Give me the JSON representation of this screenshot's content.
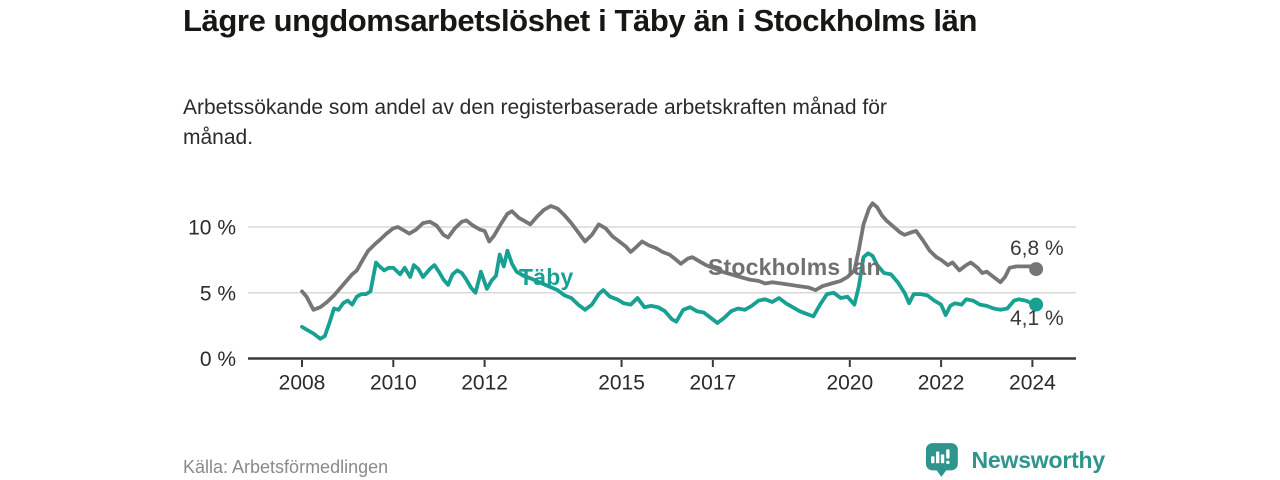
{
  "header": {
    "title": "Lägre ungdomsarbetslöshet i Täby än i Stockholms län",
    "subtitle": "Arbetssökande som andel av den registerbaserade arbetskraften månad för månad."
  },
  "footer": {
    "source": "Källa: Arbetsförmedlingen",
    "brand": "Newsworthy",
    "brand_icon": "newsworthy-chart-bubble-icon"
  },
  "colors": {
    "stockholm_line": "#767676",
    "taby_line": "#18a093",
    "grid_line": "#dadada",
    "axis_line": "#3a3a3a",
    "tick_text": "#2b2b2b",
    "title_text": "#171714",
    "muted_text": "#8a8a8a",
    "brand_teal": "#2e958c"
  },
  "chart_data": {
    "type": "line",
    "title": "Lägre ungdomsarbetslöshet i Täby än i Stockholms län",
    "subtitle": "Arbetssökande som andel av den registerbaserade arbetskraften månad för månad.",
    "source": "Källa: Arbetsförmedlingen",
    "unit": "%",
    "grid": "horizontal",
    "legend_position": "inline-labels",
    "xlim": [
      2006.8,
      2024.95
    ],
    "ylim": [
      0,
      12.5
    ],
    "x_ticks": [
      "2008",
      "2010",
      "2012",
      "2015",
      "2017",
      "2020",
      "2022",
      "2024"
    ],
    "x_tick_years": [
      2008,
      2010,
      2012,
      2015,
      2017,
      2020,
      2022,
      2024
    ],
    "y_ticks": [
      {
        "v": 0,
        "label": "0 %"
      },
      {
        "v": 5,
        "label": "5 %"
      },
      {
        "v": 10,
        "label": "10 %"
      }
    ],
    "series": [
      {
        "name": "Stockholms län",
        "key": "stockholm",
        "color": "#767676",
        "end_value": 6.8,
        "end_label": "6,8 %",
        "points": [
          [
            2008.0,
            5.1
          ],
          [
            2008.1,
            4.7
          ],
          [
            2008.25,
            3.7
          ],
          [
            2008.4,
            3.9
          ],
          [
            2008.55,
            4.3
          ],
          [
            2008.7,
            4.8
          ],
          [
            2008.85,
            5.4
          ],
          [
            2009.0,
            6.0
          ],
          [
            2009.1,
            6.4
          ],
          [
            2009.2,
            6.7
          ],
          [
            2009.33,
            7.5
          ],
          [
            2009.45,
            8.2
          ],
          [
            2009.6,
            8.7
          ],
          [
            2009.7,
            9.0
          ],
          [
            2009.85,
            9.5
          ],
          [
            2010.0,
            9.9
          ],
          [
            2010.1,
            10.0
          ],
          [
            2010.25,
            9.7
          ],
          [
            2010.35,
            9.5
          ],
          [
            2010.5,
            9.8
          ],
          [
            2010.65,
            10.3
          ],
          [
            2010.8,
            10.4
          ],
          [
            2010.95,
            10.1
          ],
          [
            2011.1,
            9.4
          ],
          [
            2011.2,
            9.2
          ],
          [
            2011.35,
            9.9
          ],
          [
            2011.5,
            10.4
          ],
          [
            2011.6,
            10.5
          ],
          [
            2011.75,
            10.1
          ],
          [
            2011.9,
            9.8
          ],
          [
            2012.0,
            9.7
          ],
          [
            2012.1,
            8.9
          ],
          [
            2012.2,
            9.3
          ],
          [
            2012.35,
            10.2
          ],
          [
            2012.5,
            11.0
          ],
          [
            2012.6,
            11.2
          ],
          [
            2012.75,
            10.7
          ],
          [
            2012.9,
            10.4
          ],
          [
            2013.0,
            10.2
          ],
          [
            2013.15,
            10.8
          ],
          [
            2013.3,
            11.3
          ],
          [
            2013.45,
            11.6
          ],
          [
            2013.6,
            11.4
          ],
          [
            2013.75,
            10.9
          ],
          [
            2013.9,
            10.3
          ],
          [
            2014.05,
            9.6
          ],
          [
            2014.2,
            8.9
          ],
          [
            2014.35,
            9.4
          ],
          [
            2014.5,
            10.2
          ],
          [
            2014.65,
            9.9
          ],
          [
            2014.8,
            9.3
          ],
          [
            2014.95,
            8.9
          ],
          [
            2015.1,
            8.5
          ],
          [
            2015.2,
            8.1
          ],
          [
            2015.3,
            8.4
          ],
          [
            2015.45,
            8.9
          ],
          [
            2015.6,
            8.6
          ],
          [
            2015.75,
            8.4
          ],
          [
            2015.9,
            8.1
          ],
          [
            2016.05,
            7.9
          ],
          [
            2016.2,
            7.5
          ],
          [
            2016.3,
            7.2
          ],
          [
            2016.45,
            7.6
          ],
          [
            2016.55,
            7.7
          ],
          [
            2016.7,
            7.4
          ],
          [
            2016.85,
            7.1
          ],
          [
            2017.0,
            6.9
          ],
          [
            2017.2,
            6.6
          ],
          [
            2017.4,
            6.4
          ],
          [
            2017.6,
            6.2
          ],
          [
            2017.8,
            6.0
          ],
          [
            2018.0,
            5.9
          ],
          [
            2018.15,
            5.7
          ],
          [
            2018.3,
            5.8
          ],
          [
            2018.5,
            5.7
          ],
          [
            2018.7,
            5.6
          ],
          [
            2018.9,
            5.5
          ],
          [
            2019.1,
            5.4
          ],
          [
            2019.25,
            5.2
          ],
          [
            2019.4,
            5.5
          ],
          [
            2019.6,
            5.7
          ],
          [
            2019.8,
            5.9
          ],
          [
            2019.95,
            6.2
          ],
          [
            2020.1,
            6.7
          ],
          [
            2020.2,
            8.3
          ],
          [
            2020.3,
            10.2
          ],
          [
            2020.42,
            11.4
          ],
          [
            2020.5,
            11.8
          ],
          [
            2020.6,
            11.5
          ],
          [
            2020.7,
            10.9
          ],
          [
            2020.8,
            10.5
          ],
          [
            2020.9,
            10.2
          ],
          [
            2021.0,
            9.9
          ],
          [
            2021.1,
            9.6
          ],
          [
            2021.2,
            9.4
          ],
          [
            2021.35,
            9.6
          ],
          [
            2021.45,
            9.7
          ],
          [
            2021.6,
            9.0
          ],
          [
            2021.75,
            8.2
          ],
          [
            2021.9,
            7.7
          ],
          [
            2022.0,
            7.5
          ],
          [
            2022.15,
            7.1
          ],
          [
            2022.25,
            7.3
          ],
          [
            2022.4,
            6.7
          ],
          [
            2022.55,
            7.1
          ],
          [
            2022.65,
            7.3
          ],
          [
            2022.8,
            6.9
          ],
          [
            2022.9,
            6.5
          ],
          [
            2023.0,
            6.6
          ],
          [
            2023.15,
            6.2
          ],
          [
            2023.3,
            5.8
          ],
          [
            2023.4,
            6.2
          ],
          [
            2023.5,
            6.9
          ],
          [
            2023.65,
            7.0
          ],
          [
            2023.8,
            7.0
          ],
          [
            2023.95,
            7.0
          ],
          [
            2024.08,
            6.8
          ]
        ]
      },
      {
        "name": "Täby",
        "key": "taby",
        "color": "#18a093",
        "end_value": 4.1,
        "end_label": "4,1 %",
        "points": [
          [
            2008.0,
            2.4
          ],
          [
            2008.1,
            2.2
          ],
          [
            2008.25,
            1.9
          ],
          [
            2008.4,
            1.5
          ],
          [
            2008.5,
            1.7
          ],
          [
            2008.6,
            2.7
          ],
          [
            2008.7,
            3.8
          ],
          [
            2008.8,
            3.7
          ],
          [
            2008.9,
            4.2
          ],
          [
            2009.0,
            4.4
          ],
          [
            2009.1,
            4.1
          ],
          [
            2009.2,
            4.7
          ],
          [
            2009.3,
            4.9
          ],
          [
            2009.4,
            4.9
          ],
          [
            2009.5,
            5.1
          ],
          [
            2009.62,
            7.3
          ],
          [
            2009.7,
            7.0
          ],
          [
            2009.8,
            6.7
          ],
          [
            2009.9,
            6.9
          ],
          [
            2010.0,
            6.9
          ],
          [
            2010.15,
            6.4
          ],
          [
            2010.25,
            6.9
          ],
          [
            2010.37,
            6.2
          ],
          [
            2010.45,
            7.1
          ],
          [
            2010.55,
            6.8
          ],
          [
            2010.65,
            6.2
          ],
          [
            2010.8,
            6.8
          ],
          [
            2010.9,
            7.1
          ],
          [
            2011.0,
            6.6
          ],
          [
            2011.1,
            6.0
          ],
          [
            2011.2,
            5.6
          ],
          [
            2011.3,
            6.4
          ],
          [
            2011.4,
            6.7
          ],
          [
            2011.5,
            6.5
          ],
          [
            2011.6,
            6.0
          ],
          [
            2011.7,
            5.4
          ],
          [
            2011.8,
            5.0
          ],
          [
            2011.92,
            6.6
          ],
          [
            2012.05,
            5.3
          ],
          [
            2012.15,
            5.9
          ],
          [
            2012.25,
            6.3
          ],
          [
            2012.33,
            7.9
          ],
          [
            2012.42,
            7.0
          ],
          [
            2012.5,
            8.2
          ],
          [
            2012.6,
            7.2
          ],
          [
            2012.7,
            6.6
          ],
          [
            2012.85,
            6.3
          ],
          [
            2013.0,
            6.1
          ],
          [
            2013.2,
            5.8
          ],
          [
            2013.4,
            5.5
          ],
          [
            2013.6,
            5.2
          ],
          [
            2013.75,
            4.8
          ],
          [
            2013.9,
            4.6
          ],
          [
            2014.05,
            4.1
          ],
          [
            2014.2,
            3.7
          ],
          [
            2014.35,
            4.1
          ],
          [
            2014.5,
            4.9
          ],
          [
            2014.6,
            5.2
          ],
          [
            2014.75,
            4.7
          ],
          [
            2014.9,
            4.5
          ],
          [
            2015.05,
            4.2
          ],
          [
            2015.2,
            4.1
          ],
          [
            2015.35,
            4.6
          ],
          [
            2015.5,
            3.9
          ],
          [
            2015.65,
            4.0
          ],
          [
            2015.8,
            3.9
          ],
          [
            2015.95,
            3.6
          ],
          [
            2016.1,
            3.0
          ],
          [
            2016.2,
            2.8
          ],
          [
            2016.35,
            3.7
          ],
          [
            2016.5,
            3.9
          ],
          [
            2016.65,
            3.6
          ],
          [
            2016.8,
            3.5
          ],
          [
            2016.95,
            3.1
          ],
          [
            2017.1,
            2.7
          ],
          [
            2017.25,
            3.1
          ],
          [
            2017.4,
            3.6
          ],
          [
            2017.55,
            3.8
          ],
          [
            2017.7,
            3.7
          ],
          [
            2017.85,
            4.0
          ],
          [
            2018.0,
            4.4
          ],
          [
            2018.15,
            4.5
          ],
          [
            2018.3,
            4.3
          ],
          [
            2018.45,
            4.6
          ],
          [
            2018.6,
            4.2
          ],
          [
            2018.75,
            3.9
          ],
          [
            2018.9,
            3.6
          ],
          [
            2019.05,
            3.4
          ],
          [
            2019.2,
            3.2
          ],
          [
            2019.35,
            4.1
          ],
          [
            2019.5,
            4.9
          ],
          [
            2019.65,
            5.0
          ],
          [
            2019.8,
            4.6
          ],
          [
            2019.95,
            4.7
          ],
          [
            2020.1,
            4.1
          ],
          [
            2020.2,
            5.5
          ],
          [
            2020.3,
            7.7
          ],
          [
            2020.4,
            8.0
          ],
          [
            2020.5,
            7.8
          ],
          [
            2020.6,
            7.1
          ],
          [
            2020.75,
            6.5
          ],
          [
            2020.9,
            6.4
          ],
          [
            2021.05,
            5.8
          ],
          [
            2021.2,
            5.0
          ],
          [
            2021.3,
            4.2
          ],
          [
            2021.4,
            4.9
          ],
          [
            2021.55,
            4.9
          ],
          [
            2021.7,
            4.8
          ],
          [
            2021.85,
            4.4
          ],
          [
            2022.0,
            4.1
          ],
          [
            2022.1,
            3.3
          ],
          [
            2022.2,
            4.0
          ],
          [
            2022.3,
            4.2
          ],
          [
            2022.45,
            4.1
          ],
          [
            2022.55,
            4.5
          ],
          [
            2022.7,
            4.4
          ],
          [
            2022.85,
            4.1
          ],
          [
            2023.0,
            4.0
          ],
          [
            2023.15,
            3.8
          ],
          [
            2023.3,
            3.7
          ],
          [
            2023.45,
            3.8
          ],
          [
            2023.6,
            4.4
          ],
          [
            2023.7,
            4.5
          ],
          [
            2023.85,
            4.4
          ],
          [
            2024.0,
            4.2
          ],
          [
            2024.08,
            4.1
          ]
        ]
      }
    ]
  }
}
